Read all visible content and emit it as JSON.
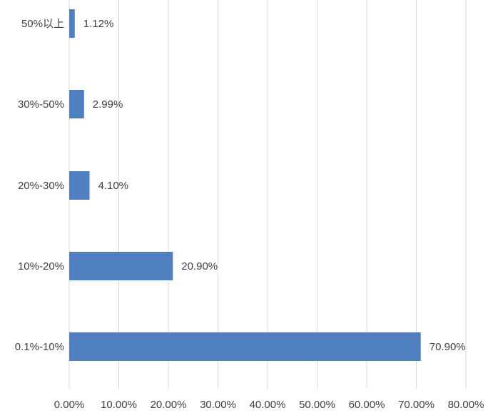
{
  "chart_data": {
    "type": "bar",
    "orientation": "horizontal",
    "title": "",
    "xlabel": "",
    "ylabel": "",
    "categories": [
      "0.1%-10%",
      "10%-20%",
      "20%-30%",
      "30%-50%",
      "50%以上"
    ],
    "values": [
      70.9,
      20.9,
      4.1,
      2.99,
      1.12
    ],
    "data_labels": [
      "70.90%",
      "20.90%",
      "4.10%",
      "2.99%",
      "1.12%"
    ],
    "xlim": [
      0,
      80
    ],
    "x_ticks": [
      0,
      10,
      20,
      30,
      40,
      50,
      60,
      70,
      80
    ],
    "x_tick_labels": [
      "0.00%",
      "10.00%",
      "20.00%",
      "30.00%",
      "40.00%",
      "50.00%",
      "60.00%",
      "70.00%",
      "80.00%"
    ],
    "grid": "vertical",
    "legend": "none",
    "colors": {
      "bar": "#4f7fbe",
      "grid": "#d9d9d9",
      "text": "#404040"
    }
  }
}
